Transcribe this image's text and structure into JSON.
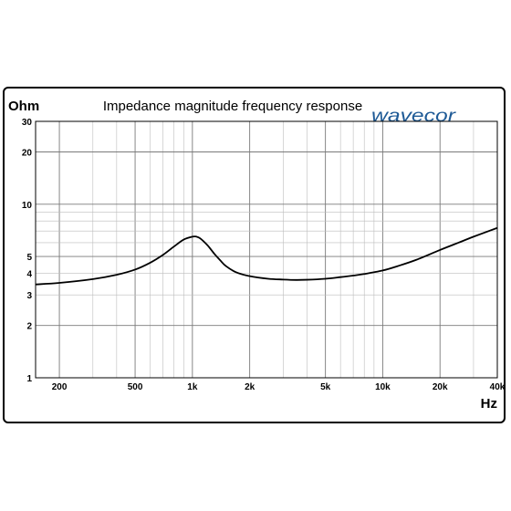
{
  "chart_data": {
    "type": "line",
    "title": "Impedance magnitude frequency response",
    "ylabel": "Ohm",
    "xlabel": "Hz",
    "x_scale": "log",
    "y_scale": "log",
    "xlim": [
      150,
      40000
    ],
    "ylim": [
      1,
      30
    ],
    "grid": true,
    "x_ticks": [
      {
        "value": 200,
        "label": "200"
      },
      {
        "value": 500,
        "label": "500"
      },
      {
        "value": 1000,
        "label": "1k"
      },
      {
        "value": 2000,
        "label": "2k"
      },
      {
        "value": 5000,
        "label": "5k"
      },
      {
        "value": 10000,
        "label": "10k"
      },
      {
        "value": 20000,
        "label": "20k"
      },
      {
        "value": 40000,
        "label": "40k"
      }
    ],
    "y_ticks": [
      {
        "value": 1,
        "label": "1"
      },
      {
        "value": 2,
        "label": "2"
      },
      {
        "value": 3,
        "label": "3"
      },
      {
        "value": 4,
        "label": "4"
      },
      {
        "value": 5,
        "label": "5"
      },
      {
        "value": 10,
        "label": "10"
      },
      {
        "value": 20,
        "label": "20"
      },
      {
        "value": 30,
        "label": "30"
      }
    ],
    "series": [
      {
        "color": "#000000",
        "x": [
          150,
          200,
          300,
          400,
          500,
          600,
          700,
          800,
          900,
          1000,
          1050,
          1100,
          1200,
          1300,
          1400,
          1500,
          1700,
          2000,
          2500,
          3000,
          3500,
          4000,
          5000,
          6000,
          7000,
          8000,
          10000,
          12000,
          15000,
          20000,
          25000,
          30000,
          40000
        ],
        "y": [
          3.45,
          3.52,
          3.7,
          3.92,
          4.2,
          4.6,
          5.1,
          5.7,
          6.25,
          6.5,
          6.5,
          6.35,
          5.8,
          5.2,
          4.75,
          4.4,
          4.05,
          3.85,
          3.72,
          3.68,
          3.66,
          3.67,
          3.72,
          3.8,
          3.88,
          3.96,
          4.15,
          4.4,
          4.78,
          5.45,
          6.0,
          6.5,
          7.3
        ]
      }
    ]
  },
  "brand": {
    "logo_text": "wavecor",
    "logo_color": "#1e5a96"
  }
}
